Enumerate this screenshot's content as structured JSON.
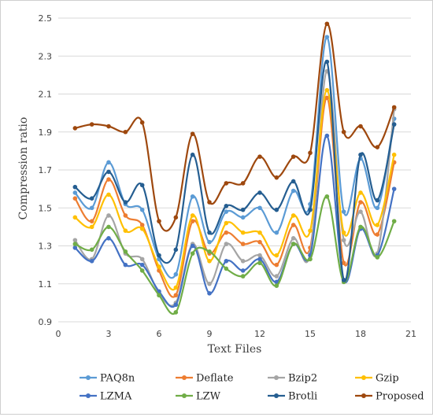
{
  "chart_data": {
    "type": "line",
    "smooth": true,
    "markers": "circle",
    "xlabel": "Text Files",
    "ylabel": "Compression ratio",
    "xlim": [
      0,
      21
    ],
    "ylim": [
      0.9,
      2.5
    ],
    "xticks": [
      "0",
      "3",
      "6",
      "9",
      "12",
      "15",
      "18",
      "21"
    ],
    "yticks": [
      "0.9",
      "1.1",
      "1.3",
      "1.5",
      "1.7",
      "1.9",
      "2.1",
      "2.3",
      "2.5"
    ],
    "grid": "horizontal",
    "legend_position": "bottom",
    "x": [
      1,
      2,
      3,
      4,
      5,
      6,
      7,
      8,
      9,
      10,
      11,
      12,
      13,
      14,
      15,
      16,
      17,
      18,
      19,
      20
    ],
    "series": [
      {
        "name": "PAQ8n",
        "color": "#5b9bd5",
        "values": [
          1.58,
          1.5,
          1.74,
          1.52,
          1.49,
          1.23,
          1.15,
          1.56,
          1.32,
          1.48,
          1.45,
          1.5,
          1.37,
          1.59,
          1.52,
          2.4,
          1.48,
          1.76,
          1.5,
          1.97
        ]
      },
      {
        "name": "Deflate",
        "color": "#ed7d31",
        "values": [
          1.55,
          1.43,
          1.65,
          1.46,
          1.41,
          1.17,
          1.04,
          1.43,
          1.26,
          1.37,
          1.31,
          1.32,
          1.2,
          1.41,
          1.29,
          2.08,
          1.21,
          1.53,
          1.36,
          1.74
        ]
      },
      {
        "name": "Bzip2",
        "color": "#a5a5a5",
        "values": [
          1.33,
          1.23,
          1.46,
          1.26,
          1.23,
          1.05,
          1.0,
          1.31,
          1.1,
          1.31,
          1.22,
          1.25,
          1.14,
          1.34,
          1.26,
          2.22,
          1.33,
          1.48,
          1.26,
          2.02
        ]
      },
      {
        "name": "Gzip",
        "color": "#ffc000",
        "values": [
          1.45,
          1.4,
          1.57,
          1.38,
          1.39,
          1.19,
          1.08,
          1.46,
          1.22,
          1.42,
          1.37,
          1.37,
          1.25,
          1.46,
          1.38,
          2.12,
          1.37,
          1.58,
          1.41,
          1.78
        ]
      },
      {
        "name": "LZMA",
        "color": "#4472c4",
        "values": [
          1.29,
          1.22,
          1.34,
          1.2,
          1.2,
          1.06,
          0.99,
          1.3,
          1.05,
          1.22,
          1.17,
          1.23,
          1.11,
          1.31,
          1.25,
          1.88,
          1.12,
          1.39,
          1.25,
          1.6
        ]
      },
      {
        "name": "LZW",
        "color": "#70ad47",
        "values": [
          1.31,
          1.28,
          1.4,
          1.27,
          1.17,
          1.04,
          0.95,
          1.26,
          1.27,
          1.18,
          1.14,
          1.21,
          1.09,
          1.31,
          1.23,
          1.56,
          1.11,
          1.4,
          1.24,
          1.43
        ]
      },
      {
        "name": "Brotli",
        "color": "#255e91",
        "values": [
          1.61,
          1.55,
          1.69,
          1.53,
          1.62,
          1.25,
          1.28,
          1.78,
          1.37,
          1.51,
          1.49,
          1.58,
          1.49,
          1.64,
          1.49,
          2.27,
          1.12,
          1.78,
          1.54,
          1.94
        ]
      },
      {
        "name": "Proposed",
        "color": "#9e480e",
        "values": [
          1.92,
          1.94,
          1.93,
          1.9,
          1.95,
          1.43,
          1.45,
          1.89,
          1.53,
          1.63,
          1.63,
          1.77,
          1.66,
          1.77,
          1.79,
          2.47,
          1.9,
          1.93,
          1.82,
          2.03
        ]
      }
    ]
  }
}
